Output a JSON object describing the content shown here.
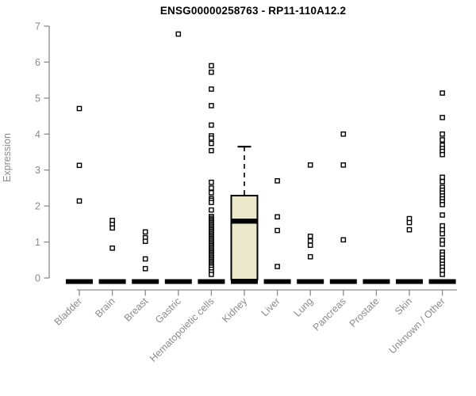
{
  "chart_data": {
    "type": "boxplot",
    "title": "ENSG00000258763 - RP11-110A12.2",
    "xlabel": "",
    "ylabel": "Expression",
    "ylim": [
      0,
      7
    ],
    "yticks": [
      0,
      1,
      2,
      3,
      4,
      5,
      6,
      7
    ],
    "grid": "off",
    "legend": "none",
    "layout": {
      "axis_color": "#8a8a8a",
      "tick_label_color": "#8a8a8a",
      "title_color": "#000000",
      "box_fill": "#ece8cc",
      "box_stroke": "#000000",
      "point_stroke": "#000000",
      "point_fill": "#ffffff",
      "x_label_rotation": -45
    },
    "categories": [
      "Bladder",
      "Brain",
      "Breast",
      "Gastric",
      "Hematopoietic cells",
      "Kidney",
      "Liver",
      "Lung",
      "Pancreas",
      "Prostate",
      "Skin",
      "Unknown / Other"
    ],
    "series": [
      {
        "category": "Bladder",
        "collapsed_box_at_zero": true,
        "points": [
          4.71,
          3.13,
          2.14
        ]
      },
      {
        "category": "Brain",
        "collapsed_box_at_zero": true,
        "points": [
          1.6,
          1.49,
          1.39,
          0.83
        ]
      },
      {
        "category": "Breast",
        "collapsed_box_at_zero": true,
        "points": [
          1.28,
          1.12,
          1.02,
          0.53,
          0.26
        ]
      },
      {
        "category": "Gastric",
        "collapsed_box_at_zero": true,
        "points": [
          6.78
        ]
      },
      {
        "category": "Hematopoietic cells",
        "collapsed_box_at_zero": true,
        "points": [
          5.9,
          5.72,
          5.25,
          4.79,
          4.25,
          3.95,
          3.89,
          3.74,
          3.54,
          2.66,
          2.5,
          2.37,
          2.21,
          2.16,
          2.1,
          1.89,
          1.71,
          1.66,
          1.62,
          1.58,
          1.54,
          1.5,
          1.46,
          1.42,
          1.38,
          1.34,
          1.3,
          1.26,
          1.22,
          1.18,
          1.14,
          1.1,
          1.06,
          1.02,
          0.98,
          0.94,
          0.9,
          0.86,
          0.82,
          0.78,
          0.74,
          0.7,
          0.66,
          0.62,
          0.58,
          0.54,
          0.5,
          0.46,
          0.42,
          0.38,
          0.34,
          0.3,
          0.24,
          0.17,
          0.1
        ]
      },
      {
        "category": "Kidney",
        "collapsed_box_at_zero": true,
        "points": [],
        "box": {
          "whisker_low": 0,
          "q1": 0,
          "median": 1.58,
          "q3": 2.29,
          "whisker_high": 3.65
        }
      },
      {
        "category": "Liver",
        "collapsed_box_at_zero": true,
        "points": [
          2.7,
          1.7,
          1.32,
          0.32
        ]
      },
      {
        "category": "Lung",
        "collapsed_box_at_zero": true,
        "points": [
          3.14,
          1.16,
          1.03,
          0.91,
          0.59
        ]
      },
      {
        "category": "Pancreas",
        "collapsed_box_at_zero": true,
        "points": [
          4.0,
          3.14,
          1.06
        ]
      },
      {
        "category": "Prostate",
        "collapsed_box_at_zero": true,
        "points": []
      },
      {
        "category": "Skin",
        "collapsed_box_at_zero": true,
        "points": [
          1.65,
          1.54,
          1.34
        ]
      },
      {
        "category": "Unknown / Other",
        "collapsed_box_at_zero": true,
        "points": [
          5.14,
          4.46,
          4.0,
          3.84,
          3.69,
          3.6,
          3.52,
          3.43,
          2.8,
          2.68,
          2.52,
          2.44,
          2.36,
          2.28,
          2.2,
          2.12,
          2.04,
          1.75,
          1.45,
          1.34,
          1.23,
          1.05,
          0.94,
          0.72,
          0.64,
          0.55,
          0.47,
          0.38,
          0.3,
          0.21,
          0.1
        ]
      }
    ]
  }
}
